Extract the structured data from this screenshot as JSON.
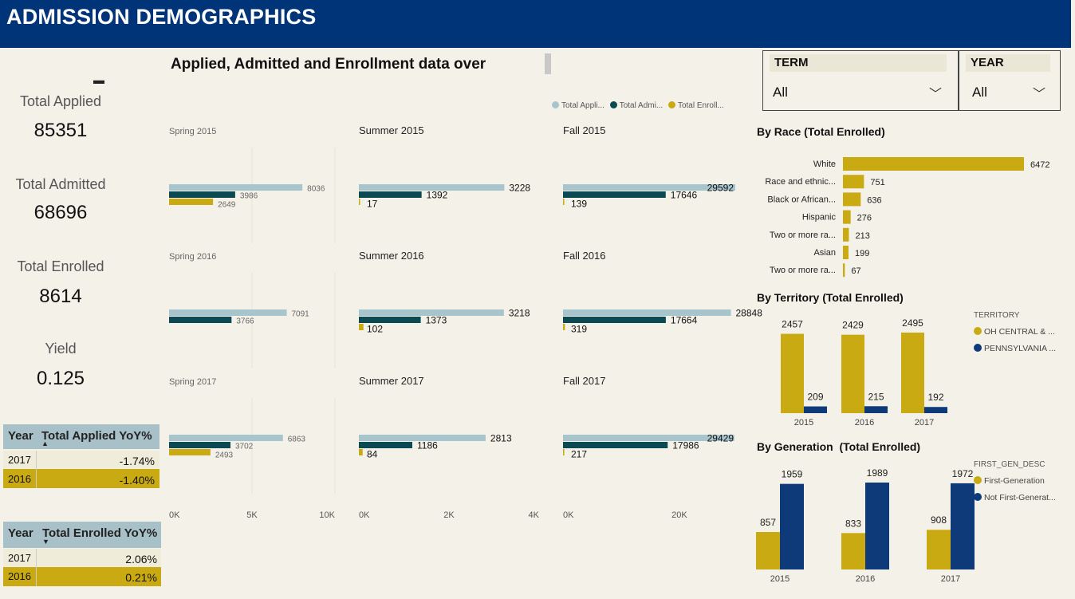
{
  "header": {
    "title": "ADMISSION DEMOGRAPHICS"
  },
  "main_chart": {
    "title": "Applied, Admitted and Enrollment data over",
    "legend": [
      "Total Appli...",
      "Total Admi...",
      "Total Enroll..."
    ]
  },
  "kpis": [
    {
      "label": "Total Applied",
      "value": "85351"
    },
    {
      "label": "Total Admitted",
      "value": "68696"
    },
    {
      "label": "Total Enrolled",
      "value": "8614"
    },
    {
      "label": "Yield",
      "value": "0.125"
    }
  ],
  "filters": {
    "term": {
      "label": "TERM",
      "value": "All"
    },
    "year": {
      "label": "YEAR",
      "value": "All"
    }
  },
  "yoy_applied": {
    "col_year": "Year",
    "col_value": "Total Applied YoY%",
    "rows": [
      {
        "year": "2017",
        "value": "-1.74%"
      },
      {
        "year": "2016",
        "value": "-1.40%"
      }
    ]
  },
  "yoy_enrolled": {
    "col_year": "Year",
    "col_value": "Total Enrolled YoY%",
    "rows": [
      {
        "year": "2017",
        "value": "2.06%"
      },
      {
        "year": "2016",
        "value": "0.21%"
      }
    ]
  },
  "colors": {
    "applied": "#a8c4cc",
    "admitted": "#0b4a52",
    "enrolled": "#c9aa12",
    "pennsylvania": "#0e3a7a"
  },
  "chart_data": [
    {
      "type": "bar",
      "title": "Applied, Admitted and Enrollment data over",
      "orientation": "horizontal",
      "panels": [
        {
          "title": "Spring 2015",
          "applied": 8036,
          "admitted": 3986,
          "enrolled": 2649,
          "xmax": 10000,
          "ticks": [
            "0K",
            "5K",
            "10K"
          ]
        },
        {
          "title": "Summer 2015",
          "applied": 3228,
          "admitted": 1392,
          "enrolled": 17,
          "xmax": 4000,
          "ticks": [
            "0K",
            "2K",
            "4K"
          ]
        },
        {
          "title": "Fall 2015",
          "applied": 29592,
          "admitted": 17646,
          "enrolled": 139,
          "xmax": 29600,
          "ticks": [
            "0K",
            "20K"
          ]
        },
        {
          "title": "Spring 2016",
          "applied": 7091,
          "admitted": 3766,
          "enrolled": null,
          "xmax": 10000
        },
        {
          "title": "Summer 2016",
          "applied": 3218,
          "admitted": 1373,
          "enrolled": 102,
          "xmax": 4000
        },
        {
          "title": "Fall 2016",
          "applied": 28848,
          "admitted": 17664,
          "enrolled": 319,
          "xmax": 29600
        },
        {
          "title": "Spring 2017",
          "applied": 6863,
          "admitted": 3702,
          "enrolled": 2493,
          "xmax": 10000
        },
        {
          "title": "Summer 2017",
          "applied": 2813,
          "admitted": 1186,
          "enrolled": 84,
          "xmax": 4000
        },
        {
          "title": "Fall 2017",
          "applied": 29429,
          "admitted": 17986,
          "enrolled": 217,
          "xmax": 29600
        }
      ]
    },
    {
      "type": "bar",
      "title": "By Race (Total Enrolled)",
      "orientation": "horizontal",
      "categories": [
        "White",
        "Race and ethnic...",
        "Black or African...",
        "Hispanic",
        "Two or more ra...",
        "Asian",
        "Two or more ra..."
      ],
      "values": [
        6472,
        751,
        636,
        276,
        213,
        199,
        67
      ]
    },
    {
      "type": "bar",
      "title": "By Territory (Total Enrolled)",
      "legend_title": "TERRITORY",
      "categories": [
        "2015",
        "2016",
        "2017"
      ],
      "series": [
        {
          "name": "OH CENTRAL & ...",
          "values": [
            2457,
            2429,
            2495
          ]
        },
        {
          "name": "PENNSYLVANIA ...",
          "values": [
            209,
            215,
            192
          ]
        }
      ]
    },
    {
      "type": "bar",
      "title": "By Generation  (Total Enrolled)",
      "legend_title": "FIRST_GEN_DESC",
      "categories": [
        "2015",
        "2016",
        "2017"
      ],
      "series": [
        {
          "name": "First-Generation",
          "values": [
            857,
            833,
            908
          ]
        },
        {
          "name": "Not First-Generat...",
          "values": [
            1959,
            1989,
            1972
          ]
        }
      ]
    }
  ]
}
